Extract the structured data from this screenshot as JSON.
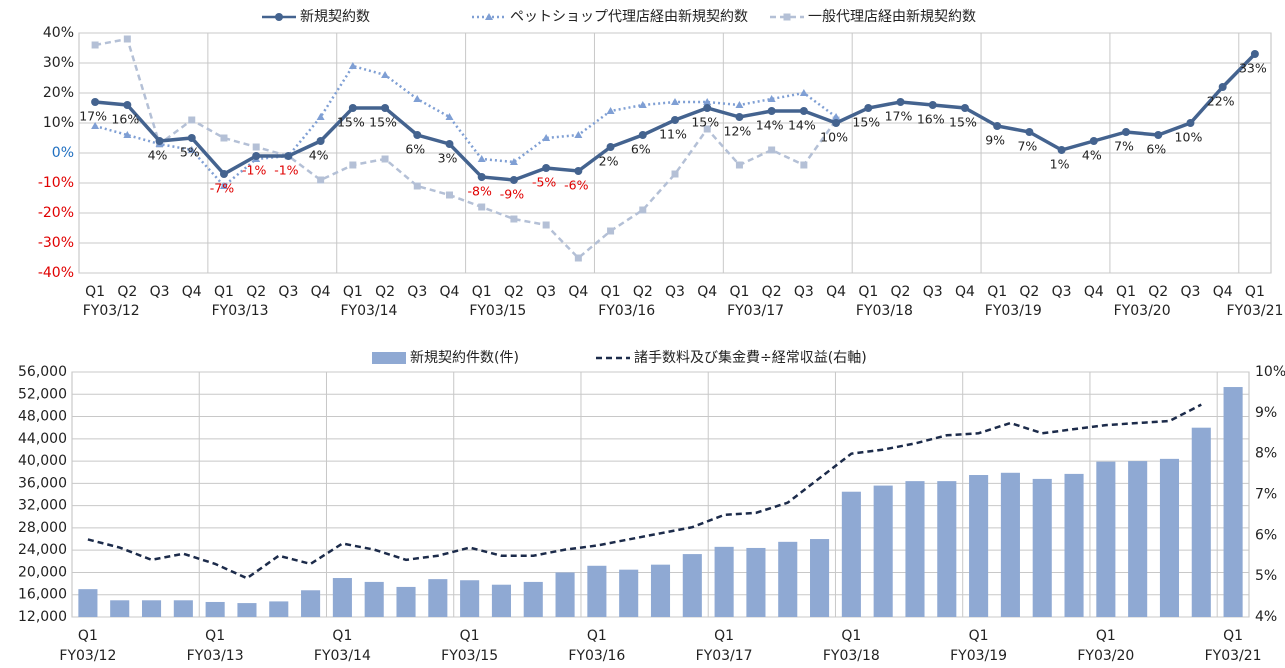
{
  "chart_data": [
    {
      "type": "line",
      "categories": [
        "Q1",
        "Q2",
        "Q3",
        "Q4",
        "Q1",
        "Q2",
        "Q3",
        "Q4",
        "Q1",
        "Q2",
        "Q3",
        "Q4",
        "Q1",
        "Q2",
        "Q3",
        "Q4",
        "Q1",
        "Q2",
        "Q3",
        "Q4",
        "Q1",
        "Q2",
        "Q3",
        "Q4",
        "Q1",
        "Q2",
        "Q3",
        "Q4",
        "Q1",
        "Q2",
        "Q3",
        "Q4",
        "Q1",
        "Q2",
        "Q3",
        "Q4",
        "Q1"
      ],
      "year_labels": [
        "FY03/12",
        null,
        null,
        null,
        "FY03/13",
        null,
        null,
        null,
        "FY03/14",
        null,
        null,
        null,
        "FY03/15",
        null,
        null,
        null,
        "FY03/16",
        null,
        null,
        null,
        "FY03/17",
        null,
        null,
        null,
        "FY03/18",
        null,
        null,
        null,
        "FY03/19",
        null,
        null,
        null,
        "FY03/20",
        null,
        null,
        null,
        "FY03/21"
      ],
      "series": [
        {
          "name": "新規契約数",
          "color": "#44638f",
          "line_style": "solid",
          "marker": "circle",
          "values": [
            17,
            16,
            4,
            5,
            -7,
            -1,
            -1,
            4,
            15,
            15,
            6,
            3,
            -8,
            -9,
            -5,
            -6,
            2,
            6,
            11,
            15,
            12,
            14,
            14,
            10,
            15,
            17,
            16,
            15,
            9,
            7,
            1,
            4,
            7,
            6,
            10,
            22,
            33
          ],
          "value_labels": [
            "17%",
            "16%",
            "4%",
            "5%",
            "-7%",
            "-1%",
            "-1%",
            "4%",
            "15%",
            "15%",
            "6%",
            "3%",
            "-8%",
            "-9%",
            "-5%",
            "-6%",
            "2%",
            "6%",
            "11%",
            "15%",
            "12%",
            "14%",
            "14%",
            "10%",
            "15%",
            "17%",
            "16%",
            "15%",
            "9%",
            "7%",
            "1%",
            "4%",
            "7%",
            "6%",
            "10%",
            "22%",
            "33%"
          ]
        },
        {
          "name": "ペットショップ代理店経由新規契約数",
          "color": "#7f9fd4",
          "line_style": "dotted",
          "marker": "triangle",
          "values": [
            9,
            6,
            3,
            1,
            -11,
            -2,
            -1,
            12,
            29,
            26,
            18,
            12,
            -2,
            -3,
            5,
            6,
            14,
            16,
            17,
            17,
            16,
            18,
            20,
            12,
            null,
            null,
            null,
            null,
            null,
            null,
            null,
            null,
            null,
            null,
            null,
            null,
            null
          ]
        },
        {
          "name": "一般代理店経由新規契約数",
          "color": "#b4c0d6",
          "line_style": "dashed",
          "marker": "square",
          "values": [
            36,
            38,
            3,
            11,
            5,
            2,
            -1,
            -9,
            -4,
            -2,
            -11,
            -14,
            -18,
            -22,
            -24,
            -35,
            -26,
            -19,
            -7,
            8,
            -4,
            1,
            -4,
            11,
            null,
            null,
            null,
            null,
            null,
            null,
            null,
            null,
            null,
            null,
            null,
            null,
            null
          ]
        }
      ],
      "ylim": [
        -40,
        40
      ],
      "yticks": [
        {
          "value": 40,
          "label": "40%"
        },
        {
          "value": 30,
          "label": "30%"
        },
        {
          "value": 20,
          "label": "20%"
        },
        {
          "value": 10,
          "label": "10%"
        },
        {
          "value": 0,
          "label": "0%"
        },
        {
          "value": -10,
          "label": "-10%"
        },
        {
          "value": -20,
          "label": "-20%"
        },
        {
          "value": -30,
          "label": "-30%"
        },
        {
          "value": -40,
          "label": "-40%"
        }
      ],
      "grid": true,
      "negative_color": "#e00000",
      "zero_color": "#1f6fc0",
      "text_color": "#222222"
    },
    {
      "type": "bar",
      "categories": [
        "Q1",
        null,
        null,
        null,
        "Q1",
        null,
        null,
        null,
        "Q1",
        null,
        null,
        null,
        "Q1",
        null,
        null,
        null,
        "Q1",
        null,
        null,
        null,
        "Q1",
        null,
        null,
        null,
        "Q1",
        null,
        null,
        null,
        "Q1",
        null,
        null,
        null,
        "Q1",
        null,
        null,
        null,
        "Q1"
      ],
      "year_labels": [
        "FY03/12",
        null,
        null,
        null,
        "FY03/13",
        null,
        null,
        null,
        "FY03/14",
        null,
        null,
        null,
        "FY03/15",
        null,
        null,
        null,
        "FY03/16",
        null,
        null,
        null,
        "FY03/17",
        null,
        null,
        null,
        "FY03/18",
        null,
        null,
        null,
        "FY03/19",
        null,
        null,
        null,
        "FY03/20",
        null,
        null,
        null,
        "FY03/21"
      ],
      "series": [
        {
          "name": "新規契約件数(件)",
          "type": "bar",
          "color": "#8fa9d3",
          "values": [
            17000,
            15000,
            15000,
            15000,
            14700,
            14500,
            14800,
            16800,
            19000,
            18300,
            17400,
            18800,
            18600,
            17800,
            18300,
            20000,
            21200,
            20500,
            21400,
            23300,
            24600,
            24400,
            25500,
            26000,
            34500,
            35600,
            36400,
            36400,
            37500,
            37900,
            36800,
            37700,
            39900,
            40000,
            40400,
            46000,
            53300
          ]
        },
        {
          "name": "諸手数料及び集金費÷経常収益(右軸)",
          "type": "line",
          "axis": "y2",
          "color": "#1c2b4a",
          "line_style": "dashed",
          "values": [
            5.9,
            5.7,
            5.4,
            5.55,
            5.3,
            4.95,
            5.5,
            5.3,
            5.8,
            5.65,
            5.4,
            5.5,
            5.7,
            5.5,
            5.5,
            5.65,
            5.75,
            5.9,
            6.05,
            6.2,
            6.5,
            6.55,
            6.8,
            7.4,
            8.0,
            8.1,
            8.25,
            8.45,
            8.5,
            8.75,
            8.5,
            8.6,
            8.7,
            8.75,
            8.8,
            9.2,
            null
          ]
        }
      ],
      "ylim": [
        12000,
        56000
      ],
      "yticks": [
        {
          "value": 12000,
          "label": "12,000"
        },
        {
          "value": 16000,
          "label": "16,000"
        },
        {
          "value": 20000,
          "label": "20,000"
        },
        {
          "value": 24000,
          "label": "24,000"
        },
        {
          "value": 28000,
          "label": "28,000"
        },
        {
          "value": 32000,
          "label": "32,000"
        },
        {
          "value": 36000,
          "label": "36,000"
        },
        {
          "value": 40000,
          "label": "40,000"
        },
        {
          "value": 44000,
          "label": "44,000"
        },
        {
          "value": 48000,
          "label": "48,000"
        },
        {
          "value": 52000,
          "label": "52,000"
        },
        {
          "value": 56000,
          "label": "56,000"
        }
      ],
      "y2lim": [
        4,
        10
      ],
      "y2ticks": [
        {
          "value": 4,
          "label": "4%"
        },
        {
          "value": 5,
          "label": "5%"
        },
        {
          "value": 6,
          "label": "6%"
        },
        {
          "value": 7,
          "label": "7%"
        },
        {
          "value": 8,
          "label": "8%"
        },
        {
          "value": 9,
          "label": "9%"
        },
        {
          "value": 10,
          "label": "10%"
        }
      ],
      "grid": true,
      "text_color": "#222222"
    }
  ]
}
